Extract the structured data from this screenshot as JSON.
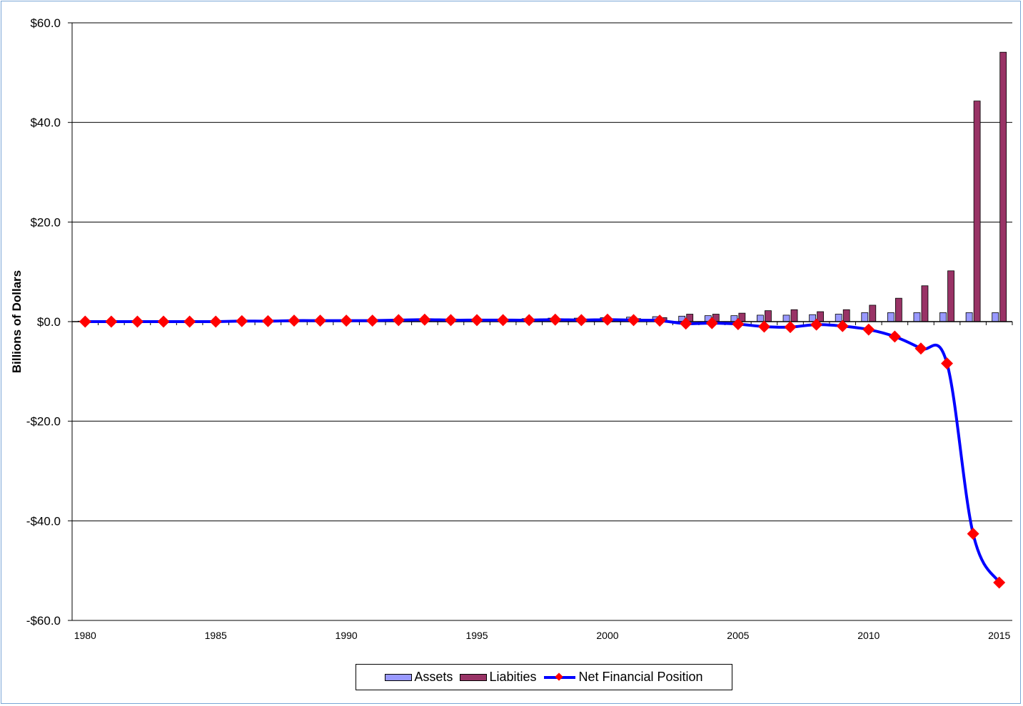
{
  "chart_data": {
    "type": "bar",
    "ylabel": "Billions of Dollars",
    "xlabel": "",
    "ylim": [
      -60,
      60
    ],
    "yticks": [
      60,
      40,
      20,
      0,
      -20,
      -40,
      -60
    ],
    "ytick_labels": [
      "$60.0",
      "$40.0",
      "$20.0",
      "$0.0",
      "-$20.0",
      "-$40.0",
      "-$60.0"
    ],
    "xticks": [
      "1980",
      "1985",
      "1990",
      "1995",
      "2000",
      "2005",
      "2010",
      "2015"
    ],
    "grid": true,
    "legend_position": "bottom",
    "categories": [
      1980,
      1981,
      1982,
      1983,
      1984,
      1985,
      1986,
      1987,
      1988,
      1989,
      1990,
      1991,
      1992,
      1993,
      1994,
      1995,
      1996,
      1997,
      1998,
      1999,
      2000,
      2001,
      2002,
      2003,
      2004,
      2005,
      2006,
      2007,
      2008,
      2009,
      2010,
      2011,
      2012,
      2013,
      2014,
      2015
    ],
    "series": [
      {
        "name": "Assets",
        "kind": "bar",
        "color": "#9999ff",
        "values": [
          0.1,
          0.1,
          0.1,
          0.1,
          0.1,
          0.1,
          0.2,
          0.2,
          0.3,
          0.3,
          0.3,
          0.3,
          0.4,
          0.5,
          0.4,
          0.4,
          0.5,
          0.6,
          0.7,
          0.7,
          0.8,
          0.9,
          1.0,
          1.1,
          1.2,
          1.2,
          1.3,
          1.3,
          1.4,
          1.5,
          1.8,
          1.8,
          1.8,
          1.8,
          1.8,
          1.8
        ]
      },
      {
        "name": "Liabities",
        "kind": "bar",
        "color": "#993366",
        "values": [
          0.1,
          0.1,
          0.1,
          0.1,
          0.1,
          0.1,
          0.1,
          0.1,
          0.1,
          0.1,
          0.1,
          0.1,
          0.1,
          0.1,
          0.1,
          0.1,
          0.2,
          0.3,
          0.3,
          0.4,
          0.4,
          0.6,
          0.8,
          1.5,
          1.5,
          1.7,
          2.2,
          2.4,
          2.0,
          2.4,
          3.3,
          4.7,
          7.2,
          10.2,
          44.3,
          54.1
        ]
      },
      {
        "name": "Net Financial Position",
        "kind": "line",
        "color": "#0000ff",
        "marker_color": "#ff0000",
        "values": [
          0.0,
          0.0,
          0.0,
          0.0,
          0.0,
          0.0,
          0.1,
          0.1,
          0.2,
          0.2,
          0.2,
          0.2,
          0.3,
          0.4,
          0.3,
          0.3,
          0.3,
          0.3,
          0.4,
          0.3,
          0.4,
          0.3,
          0.2,
          -0.4,
          -0.3,
          -0.5,
          -1.0,
          -1.1,
          -0.6,
          -0.9,
          -1.6,
          -3.0,
          -5.4,
          -8.4,
          -42.6,
          -52.4
        ]
      }
    ]
  }
}
